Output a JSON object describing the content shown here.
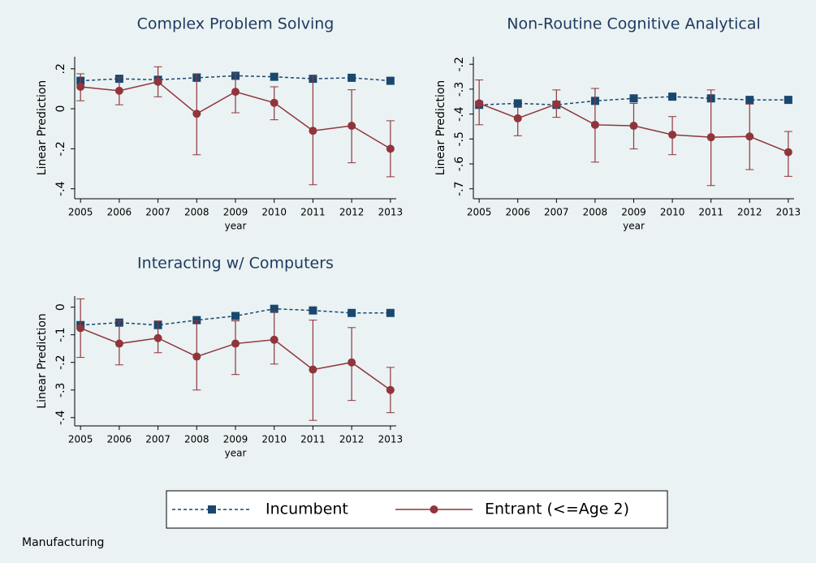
{
  "chart_data": [
    {
      "type": "line",
      "title": "Complex Problem Solving",
      "xlabel": "year",
      "ylabel": "Linear Prediction",
      "x": [
        2005,
        2006,
        2007,
        2008,
        2009,
        2010,
        2011,
        2012,
        2013
      ],
      "xlim": [
        2004.85,
        2013.15
      ],
      "xticks": [
        2005,
        2006,
        2007,
        2008,
        2009,
        2010,
        2011,
        2012,
        2013
      ],
      "ylim": [
        -0.45,
        0.26
      ],
      "yticks": [
        {
          "value": -0.4,
          "label": "-.4"
        },
        {
          "value": -0.2,
          "label": "-.2"
        },
        0,
        {
          "value": 0.2,
          "label": ".2"
        }
      ],
      "series": [
        {
          "color": "#1a476f",
          "style": "dashed",
          "marker": "square",
          "values": [
            0.14,
            0.15,
            0.145,
            0.155,
            0.165,
            0.16,
            0.15,
            0.155,
            0.14
          ]
        },
        {
          "color": "#90353b",
          "style": "solid",
          "marker": "circle",
          "values": [
            0.11,
            0.09,
            0.135,
            -0.025,
            0.085,
            0.03,
            -0.11,
            -0.085,
            -0.2
          ],
          "lower": [
            0.04,
            0.02,
            0.06,
            -0.23,
            -0.02,
            -0.055,
            -0.38,
            -0.27,
            -0.34
          ],
          "upper": [
            0.175,
            0.155,
            0.21,
            0.175,
            0.175,
            0.11,
            0.165,
            0.095,
            -0.06
          ]
        }
      ]
    },
    {
      "type": "line",
      "title": "Non-Routine Cognitive Analytical",
      "xlabel": "year",
      "ylabel": "Linear Prediction",
      "x": [
        2005,
        2006,
        2007,
        2008,
        2009,
        2010,
        2011,
        2012,
        2013
      ],
      "xlim": [
        2004.85,
        2013.15
      ],
      "xticks": [
        2005,
        2006,
        2007,
        2008,
        2009,
        2010,
        2011,
        2012,
        2013
      ],
      "ylim": [
        -0.74,
        -0.17
      ],
      "yticks": [
        {
          "value": -0.7,
          "label": "-.7"
        },
        {
          "value": -0.6,
          "label": "-.6"
        },
        {
          "value": -0.5,
          "label": "-.5"
        },
        {
          "value": -0.4,
          "label": "-.4"
        },
        {
          "value": -0.3,
          "label": "-.3"
        },
        {
          "value": -0.2,
          "label": "-.2"
        }
      ],
      "series": [
        {
          "color": "#1a476f",
          "style": "dashed",
          "marker": "square",
          "values": [
            -0.363,
            -0.357,
            -0.363,
            -0.347,
            -0.337,
            -0.33,
            -0.337,
            -0.343,
            -0.343
          ]
        },
        {
          "color": "#90353b",
          "style": "solid",
          "marker": "circle",
          "values": [
            -0.357,
            -0.417,
            -0.36,
            -0.443,
            -0.447,
            -0.483,
            -0.493,
            -0.49,
            -0.553
          ],
          "lower": [
            -0.443,
            -0.487,
            -0.413,
            -0.593,
            -0.54,
            -0.563,
            -0.687,
            -0.623,
            -0.65
          ],
          "upper": [
            -0.263,
            -0.373,
            -0.303,
            -0.297,
            -0.357,
            -0.41,
            -0.303,
            -0.36,
            -0.47
          ]
        }
      ]
    },
    {
      "type": "line",
      "title": "Interacting w/ Computers",
      "xlabel": "year",
      "ylabel": "Linear Prediction",
      "x": [
        2005,
        2006,
        2007,
        2008,
        2009,
        2010,
        2011,
        2012,
        2013
      ],
      "xlim": [
        2004.85,
        2013.15
      ],
      "xticks": [
        2005,
        2006,
        2007,
        2008,
        2009,
        2010,
        2011,
        2012,
        2013
      ],
      "ylim": [
        -0.43,
        0.04
      ],
      "yticks": [
        {
          "value": -0.4,
          "label": "-.4"
        },
        {
          "value": -0.3,
          "label": "-.3"
        },
        {
          "value": -0.2,
          "label": "-.2"
        },
        {
          "value": -0.1,
          "label": "-.1"
        },
        0
      ],
      "series": [
        {
          "color": "#1a476f",
          "style": "dashed",
          "marker": "square",
          "values": [
            -0.065,
            -0.056,
            -0.065,
            -0.047,
            -0.032,
            -0.006,
            -0.012,
            -0.021,
            -0.021
          ]
        },
        {
          "color": "#90353b",
          "style": "solid",
          "marker": "circle",
          "values": [
            -0.076,
            -0.132,
            -0.112,
            -0.179,
            -0.132,
            -0.118,
            -0.226,
            -0.2,
            -0.3
          ],
          "lower": [
            -0.182,
            -0.209,
            -0.165,
            -0.3,
            -0.244,
            -0.206,
            -0.41,
            -0.338,
            -0.382
          ],
          "upper": [
            0.03,
            -0.05,
            -0.05,
            -0.05,
            -0.05,
            -0.015,
            -0.047,
            -0.074,
            -0.218
          ]
        }
      ]
    }
  ],
  "legend": [
    "Incumbent",
    "Entrant (<=Age 2)"
  ],
  "note": "Manufacturing"
}
